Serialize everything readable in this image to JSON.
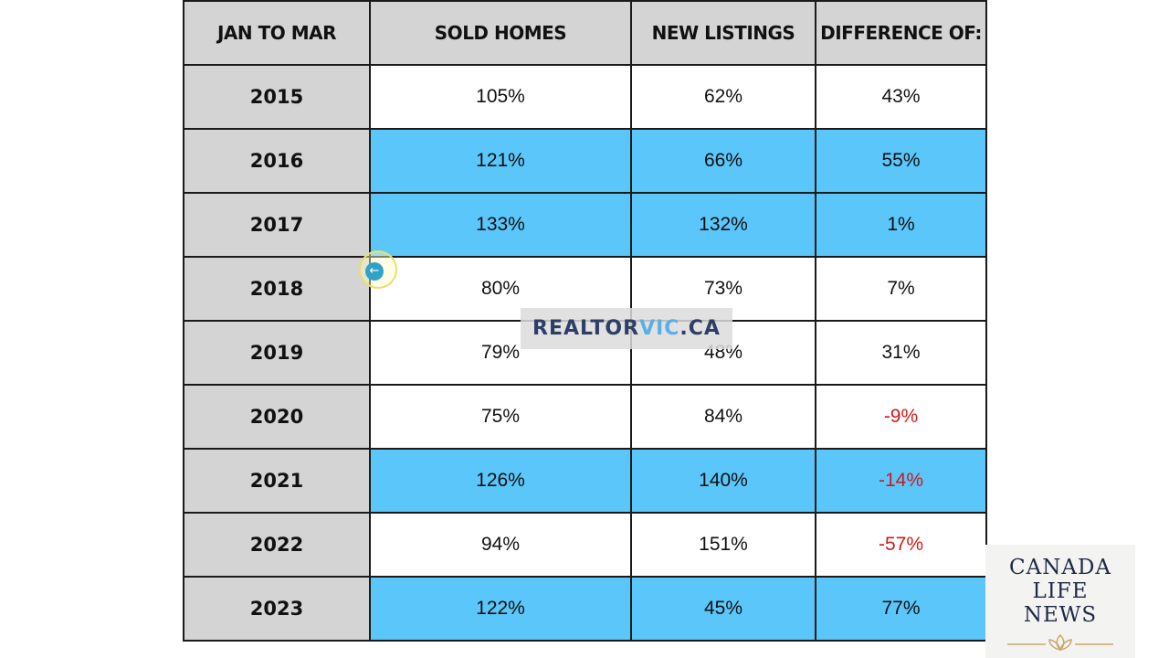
{
  "chart_data": {
    "type": "table",
    "columns": [
      "JAN TO MAR",
      "SOLD HOMES",
      "NEW LISTINGS",
      "DIFFERENCE OF:"
    ],
    "rows": [
      {
        "year": "2015",
        "sold": "105%",
        "listings": "62%",
        "difference": "43%",
        "highlighted": false,
        "negative": false
      },
      {
        "year": "2016",
        "sold": "121%",
        "listings": "66%",
        "difference": "55%",
        "highlighted": true,
        "negative": false
      },
      {
        "year": "2017",
        "sold": "133%",
        "listings": "132%",
        "difference": "1%",
        "highlighted": true,
        "negative": false
      },
      {
        "year": "2018",
        "sold": "80%",
        "listings": "73%",
        "difference": "7%",
        "highlighted": false,
        "negative": false
      },
      {
        "year": "2019",
        "sold": "79%",
        "listings": "48%",
        "difference": "31%",
        "highlighted": false,
        "negative": false
      },
      {
        "year": "2020",
        "sold": "75%",
        "listings": "84%",
        "difference": "-9%",
        "highlighted": false,
        "negative": true
      },
      {
        "year": "2021",
        "sold": "126%",
        "listings": "140%",
        "difference": "-14%",
        "highlighted": true,
        "negative": true
      },
      {
        "year": "2022",
        "sold": "94%",
        "listings": "151%",
        "difference": "-57%",
        "highlighted": false,
        "negative": true
      },
      {
        "year": "2023",
        "sold": "122%",
        "listings": "45%",
        "difference": "77%",
        "highlighted": true,
        "negative": false
      }
    ]
  },
  "watermark": {
    "part1": "REALTOR",
    "part2": "VIC",
    "part3": ".CA"
  },
  "brand": {
    "line1": "CANADA",
    "line2": "LIFE",
    "line3": "NEWS"
  },
  "colors": {
    "highlight": "#5ac6fa",
    "header_bg": "#d4d4d4",
    "negative": "#d0191b"
  },
  "cursor": {
    "icon": "arrow-left-icon"
  }
}
